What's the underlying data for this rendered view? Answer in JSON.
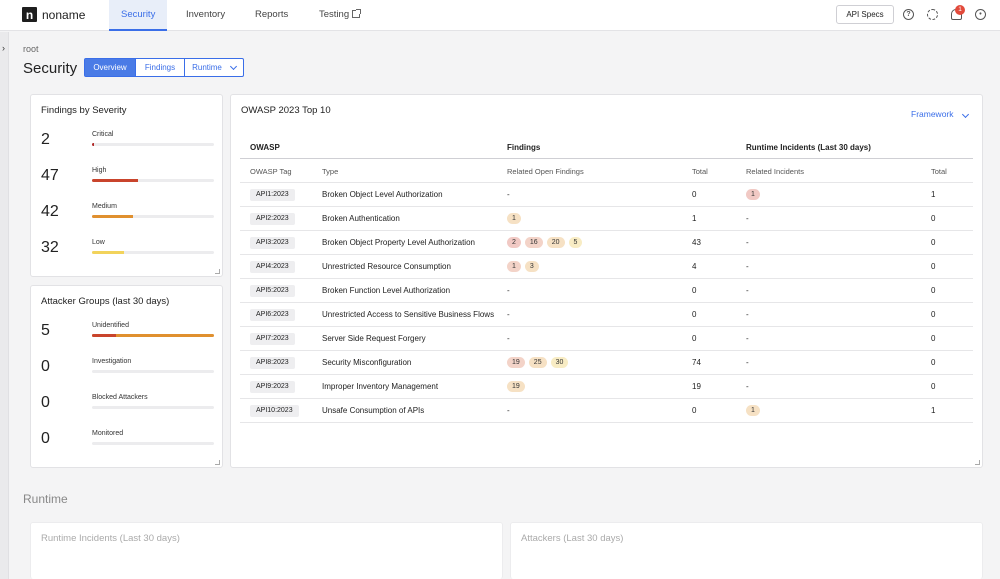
{
  "brand": {
    "name": "noname",
    "mark": "n"
  },
  "nav": {
    "items": [
      {
        "label": "Security"
      },
      {
        "label": "Inventory"
      },
      {
        "label": "Reports"
      },
      {
        "label": "Testing"
      }
    ],
    "api_specs": "API Specs",
    "notification_count": "1"
  },
  "breadcrumb": "root",
  "page_title": "Security",
  "tabs": [
    {
      "label": "Overview"
    },
    {
      "label": "Findings"
    },
    {
      "label": "Runtime"
    }
  ],
  "severity_card": {
    "title": "Findings by Severity",
    "rows": [
      {
        "count": "2",
        "label": "Critical",
        "fill": 0.02,
        "color": "#b02a2a"
      },
      {
        "count": "47",
        "label": "High",
        "fill": 0.38,
        "color": "#c9442c"
      },
      {
        "count": "42",
        "label": "Medium",
        "fill": 0.34,
        "color": "#e0902f"
      },
      {
        "count": "32",
        "label": "Low",
        "fill": 0.26,
        "color": "#f2d35b"
      }
    ]
  },
  "attackers_card": {
    "title": "Attacker Groups (last 30 days)",
    "rows": [
      {
        "count": "5",
        "label": "Unidentified",
        "fill": 1.0,
        "fill_red": 0.2
      },
      {
        "count": "0",
        "label": "Investigation",
        "fill": 0
      },
      {
        "count": "0",
        "label": "Blocked Attackers",
        "fill": 0
      },
      {
        "count": "0",
        "label": "Monitored",
        "fill": 0
      }
    ]
  },
  "owasp": {
    "title": "OWASP 2023 Top 10",
    "framework_label": "Framework",
    "group_headers": {
      "owasp": "OWASP",
      "findings": "Findings",
      "runtime": "Runtime Incidents (Last 30 days)"
    },
    "columns": {
      "tag": "OWASP Tag",
      "type": "Type",
      "related_findings": "Related Open Findings",
      "total": "Total",
      "related_incidents": "Related Incidents",
      "total2": "Total"
    },
    "rows": [
      {
        "tag": "API1:2023",
        "type": "Broken Object Level Authorization",
        "findings": [],
        "findings_empty": "-",
        "total": "0",
        "incidents": [
          {
            "v": "1",
            "sev": "critical"
          }
        ],
        "incidents_empty": "",
        "total2": "1"
      },
      {
        "tag": "API2:2023",
        "type": "Broken Authentication",
        "findings": [
          {
            "v": "1",
            "sev": "medium"
          }
        ],
        "findings_empty": "",
        "total": "1",
        "incidents": [],
        "incidents_empty": "-",
        "total2": "0"
      },
      {
        "tag": "API3:2023",
        "type": "Broken Object Property Level Authorization",
        "findings": [
          {
            "v": "2",
            "sev": "critical"
          },
          {
            "v": "16",
            "sev": "high"
          },
          {
            "v": "20",
            "sev": "medium"
          },
          {
            "v": "5",
            "sev": "low"
          }
        ],
        "findings_empty": "",
        "total": "43",
        "incidents": [],
        "incidents_empty": "-",
        "total2": "0"
      },
      {
        "tag": "API4:2023",
        "type": "Unrestricted Resource Consumption",
        "findings": [
          {
            "v": "1",
            "sev": "high"
          },
          {
            "v": "3",
            "sev": "medium"
          }
        ],
        "findings_empty": "",
        "total": "4",
        "incidents": [],
        "incidents_empty": "-",
        "total2": "0"
      },
      {
        "tag": "API5:2023",
        "type": "Broken Function Level Authorization",
        "findings": [],
        "findings_empty": "-",
        "total": "0",
        "incidents": [],
        "incidents_empty": "-",
        "total2": "0"
      },
      {
        "tag": "API6:2023",
        "type": "Unrestricted Access to Sensitive Business Flows",
        "findings": [],
        "findings_empty": "-",
        "total": "0",
        "incidents": [],
        "incidents_empty": "-",
        "total2": "0"
      },
      {
        "tag": "API7:2023",
        "type": "Server Side Request Forgery",
        "findings": [],
        "findings_empty": "-",
        "total": "0",
        "incidents": [],
        "incidents_empty": "-",
        "total2": "0"
      },
      {
        "tag": "API8:2023",
        "type": "Security Misconfiguration",
        "findings": [
          {
            "v": "19",
            "sev": "high"
          },
          {
            "v": "25",
            "sev": "medium"
          },
          {
            "v": "30",
            "sev": "low"
          }
        ],
        "findings_empty": "",
        "total": "74",
        "incidents": [],
        "incidents_empty": "-",
        "total2": "0"
      },
      {
        "tag": "API9:2023",
        "type": "Improper Inventory Management",
        "findings": [
          {
            "v": "19",
            "sev": "medium"
          }
        ],
        "findings_empty": "",
        "total": "19",
        "incidents": [],
        "incidents_empty": "-",
        "total2": "0"
      },
      {
        "tag": "API10:2023",
        "type": "Unsafe Consumption of APIs",
        "findings": [],
        "findings_empty": "-",
        "total": "0",
        "incidents": [
          {
            "v": "1",
            "sev": "medium"
          }
        ],
        "incidents_empty": "",
        "total2": "1"
      }
    ]
  },
  "runtime": {
    "title": "Runtime",
    "incidents_card": "Runtime Incidents (Last 30 days)",
    "attackers_card": "Attackers (Last 30 days)"
  }
}
